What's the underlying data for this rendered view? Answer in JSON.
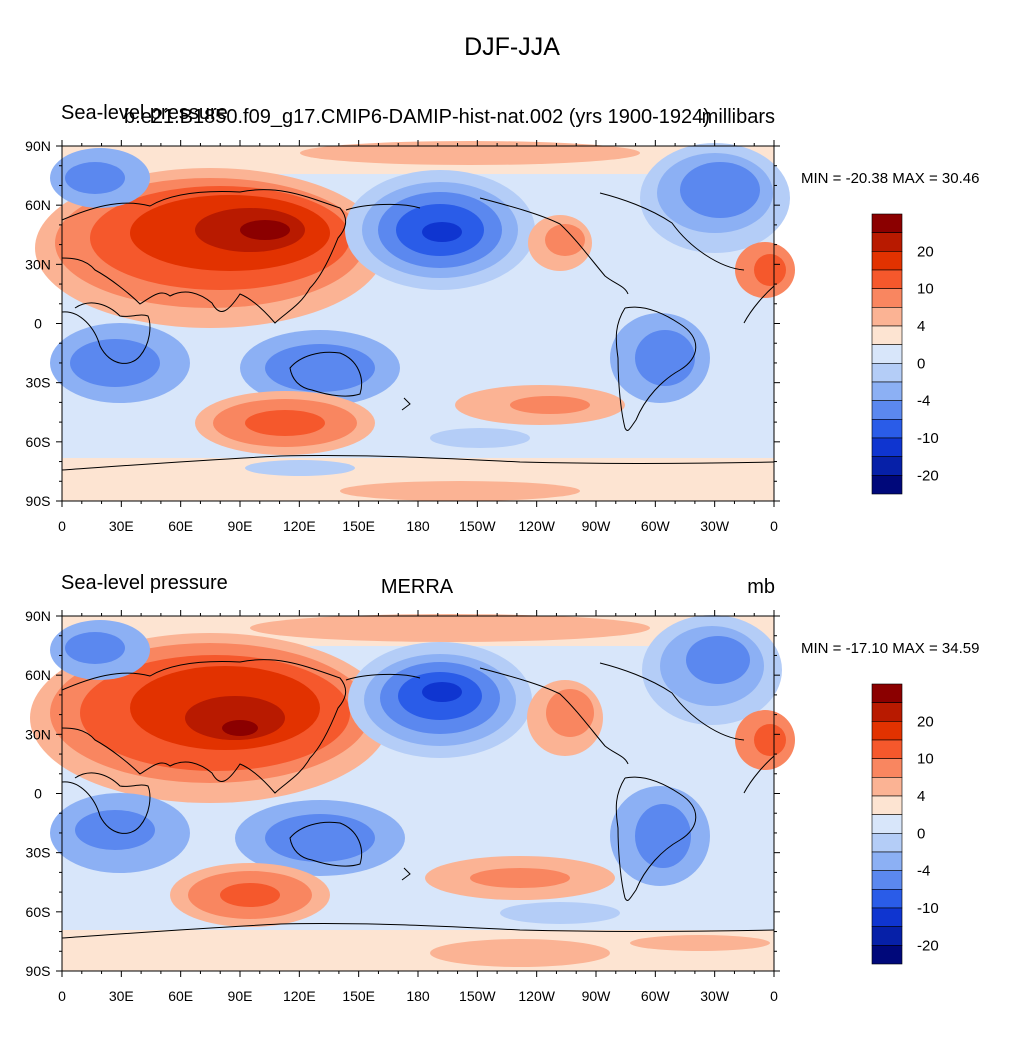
{
  "figure_title": "DJF-JJA",
  "panels": [
    {
      "id": "top",
      "left_title": "Sea-level pressure",
      "center_title": "b.e21.B1850.f09_g17.CMIP6-DAMIP-hist-nat.002 (yrs 1900-1924)",
      "right_title": "millibars",
      "minmax": "MIN = -20.38 MAX =  30.46"
    },
    {
      "id": "bottom",
      "left_title": "Sea-level pressure",
      "center_title": "MERRA",
      "right_title": "mb",
      "minmax": "MIN = -17.10 MAX =  34.59"
    }
  ],
  "axes": {
    "lat_labels": [
      "90N",
      "60N",
      "30N",
      "0",
      "30S",
      "60S",
      "90S"
    ],
    "lon_labels": [
      "0",
      "30E",
      "60E",
      "90E",
      "120E",
      "150E",
      "180",
      "150W",
      "120W",
      "90W",
      "60W",
      "30W",
      "0"
    ]
  },
  "colorbar": {
    "colors": [
      "#8b0000",
      "#b81a00",
      "#e23200",
      "#f5582c",
      "#f98660",
      "#fbb394",
      "#fde4d2",
      "#d8e6fa",
      "#b4cdf7",
      "#8cb0f4",
      "#5b88ef",
      "#2a5ce8",
      "#0f35d0",
      "#0620a8",
      "#00087a"
    ],
    "labels": [
      "20",
      "10",
      "4",
      "0",
      "-4",
      "-10",
      "-20"
    ]
  }
}
